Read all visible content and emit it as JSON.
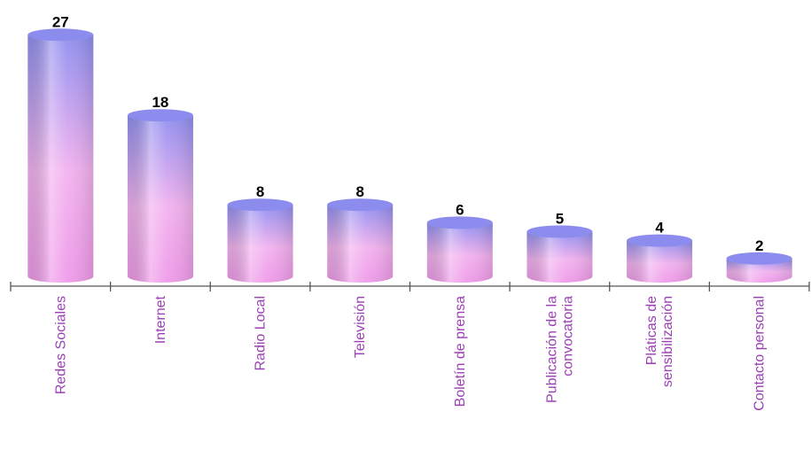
{
  "chart_data": {
    "type": "bar",
    "style": "3d-cylinder",
    "categories": [
      [
        "Redes Sociales"
      ],
      [
        "Internet"
      ],
      [
        "Radio Local"
      ],
      [
        "Televisión"
      ],
      [
        "Boletín de prensa"
      ],
      [
        "Publicación de la",
        "convocatoria"
      ],
      [
        "Pláticas de",
        "sensibilización"
      ],
      [
        "Contacto personal"
      ]
    ],
    "values": [
      27,
      18,
      8,
      8,
      6,
      5,
      4,
      2
    ],
    "title": "",
    "xlabel": "",
    "ylabel": "",
    "ylim": [
      0,
      27
    ],
    "grid": false,
    "legend": "none",
    "data_labels": true,
    "colors": {
      "bar_top": "#8f8ff0",
      "bar_bottom": "#f3a6ee",
      "cap": "#8c8cee",
      "category_text": "#9b3fb5",
      "axis": "#555555"
    }
  }
}
